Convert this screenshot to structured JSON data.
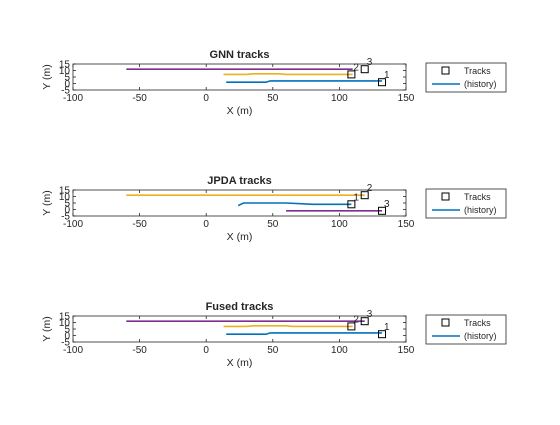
{
  "chart_data": [
    {
      "type": "line",
      "title": "GNN tracks",
      "xlabel": "X (m)",
      "ylabel": "Y (m)",
      "xlim": [
        -100,
        150
      ],
      "ylim": [
        -5,
        15
      ],
      "xticks": [
        -100,
        -50,
        0,
        50,
        100,
        150
      ],
      "yticks": [
        -5,
        0,
        5,
        10,
        15
      ],
      "legend": {
        "position": "right",
        "entries": [
          "Tracks",
          "(history)"
        ]
      },
      "series": [
        {
          "color": "#7e2f8e",
          "points": [
            [
              -60,
              11
            ],
            [
              110,
              11
            ]
          ]
        },
        {
          "color": "#edb120",
          "points": [
            [
              13,
              7
            ],
            [
              30,
              7
            ],
            [
              35,
              7.5
            ],
            [
              55,
              7.5
            ],
            [
              60,
              7
            ],
            [
              110,
              7
            ]
          ]
        },
        {
          "color": "#0072bd",
          "points": [
            [
              15,
              1
            ],
            [
              45,
              1
            ],
            [
              48,
              2
            ],
            [
              132,
              2
            ]
          ]
        }
      ],
      "tracks": [
        {
          "id": "1",
          "x": 132,
          "y": 1
        },
        {
          "id": "2",
          "x": 109,
          "y": 7
        },
        {
          "id": "3",
          "x": 119,
          "y": 11
        }
      ]
    },
    {
      "type": "line",
      "title": "JPDA tracks",
      "xlabel": "X (m)",
      "ylabel": "Y (m)",
      "xlim": [
        -100,
        150
      ],
      "ylim": [
        -5,
        15
      ],
      "xticks": [
        -100,
        -50,
        0,
        50,
        100,
        150
      ],
      "yticks": [
        -5,
        0,
        5,
        10,
        15
      ],
      "legend": {
        "position": "right",
        "entries": [
          "Tracks",
          "(history)"
        ]
      },
      "series": [
        {
          "color": "#edb120",
          "points": [
            [
              -60,
              11
            ],
            [
              119,
              11
            ]
          ]
        },
        {
          "color": "#0072bd",
          "points": [
            [
              24,
              3
            ],
            [
              26,
              4
            ],
            [
              28,
              5
            ],
            [
              60,
              5
            ],
            [
              80,
              4
            ],
            [
              109,
              4
            ]
          ]
        },
        {
          "color": "#7e2f8e",
          "points": [
            [
              60,
              -1
            ],
            [
              132,
              -1
            ]
          ]
        }
      ],
      "tracks": [
        {
          "id": "1",
          "x": 109,
          "y": 4
        },
        {
          "id": "2",
          "x": 119,
          "y": 11
        },
        {
          "id": "3",
          "x": 132,
          "y": -1
        }
      ]
    },
    {
      "type": "line",
      "title": "Fused tracks",
      "xlabel": "X (m)",
      "ylabel": "Y (m)",
      "xlim": [
        -100,
        150
      ],
      "ylim": [
        -5,
        15
      ],
      "xticks": [
        -100,
        -50,
        0,
        50,
        100,
        150
      ],
      "yticks": [
        -5,
        0,
        5,
        10,
        15
      ],
      "legend": {
        "position": "right",
        "entries": [
          "Tracks",
          "(history)"
        ]
      },
      "series": [
        {
          "color": "#7e2f8e",
          "points": [
            [
              -60,
              11
            ],
            [
              119,
              11
            ]
          ]
        },
        {
          "color": "#edb120",
          "points": [
            [
              13,
              7
            ],
            [
              30,
              7
            ],
            [
              35,
              7.5
            ],
            [
              60,
              7.5
            ],
            [
              65,
              7
            ],
            [
              110,
              7
            ]
          ]
        },
        {
          "color": "#0072bd",
          "points": [
            [
              15,
              1
            ],
            [
              45,
              1
            ],
            [
              48,
              2
            ],
            [
              132,
              2
            ]
          ]
        }
      ],
      "tracks": [
        {
          "id": "1",
          "x": 132,
          "y": 1
        },
        {
          "id": "2",
          "x": 109,
          "y": 7
        },
        {
          "id": "3",
          "x": 119,
          "y": 11
        }
      ]
    }
  ]
}
